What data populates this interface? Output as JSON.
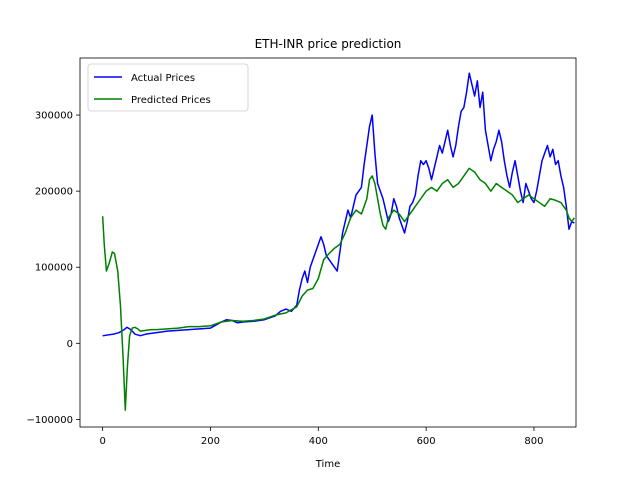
{
  "chart_data": {
    "type": "line",
    "title": "ETH-INR price prediction",
    "xlabel": "Time",
    "ylabel": "",
    "xlim": [
      -42,
      878
    ],
    "ylim": [
      -110000,
      375000
    ],
    "x_ticks": [
      0,
      200,
      400,
      600,
      800
    ],
    "y_ticks": [
      -100000,
      0,
      100000,
      200000,
      300000
    ],
    "legend_position": "upper-left",
    "grid": false,
    "series": [
      {
        "name": "Actual Prices",
        "color": "#0000ff",
        "points": [
          [
            0,
            10000
          ],
          [
            10,
            11000
          ],
          [
            20,
            12000
          ],
          [
            30,
            14000
          ],
          [
            40,
            18000
          ],
          [
            45,
            21000
          ],
          [
            50,
            19000
          ],
          [
            55,
            16000
          ],
          [
            60,
            12000
          ],
          [
            70,
            10000
          ],
          [
            80,
            12000
          ],
          [
            90,
            13000
          ],
          [
            100,
            14000
          ],
          [
            120,
            16000
          ],
          [
            140,
            17000
          ],
          [
            160,
            18000
          ],
          [
            180,
            19000
          ],
          [
            200,
            20000
          ],
          [
            210,
            24000
          ],
          [
            220,
            28000
          ],
          [
            230,
            31000
          ],
          [
            240,
            30000
          ],
          [
            250,
            27000
          ],
          [
            260,
            28000
          ],
          [
            280,
            29000
          ],
          [
            300,
            31000
          ],
          [
            320,
            36000
          ],
          [
            330,
            42000
          ],
          [
            340,
            45000
          ],
          [
            350,
            42000
          ],
          [
            360,
            50000
          ],
          [
            365,
            70000
          ],
          [
            370,
            85000
          ],
          [
            375,
            95000
          ],
          [
            380,
            80000
          ],
          [
            385,
            100000
          ],
          [
            390,
            110000
          ],
          [
            395,
            120000
          ],
          [
            400,
            130000
          ],
          [
            405,
            140000
          ],
          [
            410,
            130000
          ],
          [
            415,
            115000
          ],
          [
            420,
            110000
          ],
          [
            425,
            105000
          ],
          [
            430,
            100000
          ],
          [
            435,
            95000
          ],
          [
            440,
            120000
          ],
          [
            445,
            145000
          ],
          [
            450,
            160000
          ],
          [
            455,
            175000
          ],
          [
            460,
            165000
          ],
          [
            465,
            180000
          ],
          [
            470,
            195000
          ],
          [
            475,
            200000
          ],
          [
            480,
            205000
          ],
          [
            485,
            235000
          ],
          [
            490,
            260000
          ],
          [
            495,
            285000
          ],
          [
            500,
            300000
          ],
          [
            505,
            250000
          ],
          [
            510,
            210000
          ],
          [
            515,
            200000
          ],
          [
            520,
            190000
          ],
          [
            525,
            175000
          ],
          [
            530,
            160000
          ],
          [
            535,
            170000
          ],
          [
            540,
            190000
          ],
          [
            545,
            180000
          ],
          [
            550,
            165000
          ],
          [
            555,
            155000
          ],
          [
            560,
            145000
          ],
          [
            565,
            160000
          ],
          [
            570,
            180000
          ],
          [
            575,
            185000
          ],
          [
            580,
            195000
          ],
          [
            585,
            220000
          ],
          [
            590,
            240000
          ],
          [
            595,
            235000
          ],
          [
            600,
            240000
          ],
          [
            605,
            230000
          ],
          [
            610,
            215000
          ],
          [
            615,
            230000
          ],
          [
            620,
            245000
          ],
          [
            625,
            260000
          ],
          [
            630,
            250000
          ],
          [
            635,
            265000
          ],
          [
            640,
            280000
          ],
          [
            645,
            260000
          ],
          [
            650,
            245000
          ],
          [
            655,
            260000
          ],
          [
            660,
            285000
          ],
          [
            665,
            305000
          ],
          [
            670,
            310000
          ],
          [
            675,
            330000
          ],
          [
            680,
            355000
          ],
          [
            685,
            340000
          ],
          [
            690,
            325000
          ],
          [
            695,
            345000
          ],
          [
            700,
            310000
          ],
          [
            705,
            330000
          ],
          [
            710,
            280000
          ],
          [
            715,
            260000
          ],
          [
            720,
            240000
          ],
          [
            725,
            255000
          ],
          [
            730,
            265000
          ],
          [
            735,
            280000
          ],
          [
            740,
            265000
          ],
          [
            745,
            240000
          ],
          [
            750,
            220000
          ],
          [
            755,
            205000
          ],
          [
            760,
            225000
          ],
          [
            765,
            240000
          ],
          [
            770,
            220000
          ],
          [
            775,
            200000
          ],
          [
            780,
            185000
          ],
          [
            785,
            210000
          ],
          [
            790,
            200000
          ],
          [
            795,
            190000
          ],
          [
            800,
            185000
          ],
          [
            805,
            200000
          ],
          [
            810,
            220000
          ],
          [
            815,
            240000
          ],
          [
            820,
            250000
          ],
          [
            825,
            260000
          ],
          [
            830,
            245000
          ],
          [
            835,
            255000
          ],
          [
            840,
            235000
          ],
          [
            845,
            240000
          ],
          [
            850,
            220000
          ],
          [
            855,
            205000
          ],
          [
            860,
            180000
          ],
          [
            865,
            150000
          ],
          [
            870,
            160000
          ],
          [
            875,
            158000
          ]
        ]
      },
      {
        "name": "Predicted Prices",
        "color": "#008000",
        "points": [
          [
            0,
            167000
          ],
          [
            3,
            130000
          ],
          [
            7,
            95000
          ],
          [
            12,
            105000
          ],
          [
            18,
            120000
          ],
          [
            22,
            118000
          ],
          [
            28,
            95000
          ],
          [
            33,
            50000
          ],
          [
            38,
            -20000
          ],
          [
            42,
            -88000
          ],
          [
            46,
            -30000
          ],
          [
            50,
            10000
          ],
          [
            55,
            20000
          ],
          [
            60,
            21000
          ],
          [
            65,
            19000
          ],
          [
            70,
            16000
          ],
          [
            80,
            17000
          ],
          [
            90,
            18000
          ],
          [
            100,
            18000
          ],
          [
            120,
            19000
          ],
          [
            140,
            20000
          ],
          [
            160,
            22000
          ],
          [
            180,
            22000
          ],
          [
            200,
            23000
          ],
          [
            220,
            28000
          ],
          [
            240,
            30000
          ],
          [
            260,
            29000
          ],
          [
            280,
            30000
          ],
          [
            300,
            32000
          ],
          [
            320,
            37000
          ],
          [
            340,
            40000
          ],
          [
            360,
            48000
          ],
          [
            370,
            62000
          ],
          [
            380,
            70000
          ],
          [
            390,
            72000
          ],
          [
            400,
            85000
          ],
          [
            410,
            110000
          ],
          [
            420,
            118000
          ],
          [
            430,
            125000
          ],
          [
            440,
            130000
          ],
          [
            450,
            145000
          ],
          [
            460,
            165000
          ],
          [
            470,
            175000
          ],
          [
            480,
            170000
          ],
          [
            490,
            190000
          ],
          [
            495,
            215000
          ],
          [
            500,
            220000
          ],
          [
            505,
            210000
          ],
          [
            510,
            190000
          ],
          [
            515,
            170000
          ],
          [
            520,
            155000
          ],
          [
            525,
            150000
          ],
          [
            530,
            165000
          ],
          [
            540,
            175000
          ],
          [
            550,
            170000
          ],
          [
            560,
            160000
          ],
          [
            570,
            170000
          ],
          [
            580,
            180000
          ],
          [
            590,
            190000
          ],
          [
            600,
            200000
          ],
          [
            610,
            205000
          ],
          [
            620,
            200000
          ],
          [
            630,
            210000
          ],
          [
            640,
            215000
          ],
          [
            650,
            205000
          ],
          [
            660,
            210000
          ],
          [
            670,
            220000
          ],
          [
            680,
            230000
          ],
          [
            690,
            225000
          ],
          [
            700,
            215000
          ],
          [
            710,
            210000
          ],
          [
            720,
            200000
          ],
          [
            730,
            210000
          ],
          [
            740,
            205000
          ],
          [
            750,
            200000
          ],
          [
            760,
            195000
          ],
          [
            770,
            185000
          ],
          [
            780,
            190000
          ],
          [
            790,
            195000
          ],
          [
            800,
            190000
          ],
          [
            810,
            185000
          ],
          [
            820,
            180000
          ],
          [
            830,
            190000
          ],
          [
            840,
            188000
          ],
          [
            850,
            185000
          ],
          [
            860,
            175000
          ],
          [
            865,
            165000
          ],
          [
            870,
            160000
          ],
          [
            875,
            165000
          ]
        ]
      }
    ]
  }
}
